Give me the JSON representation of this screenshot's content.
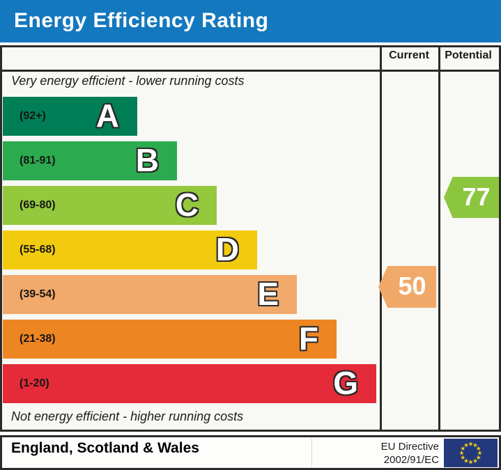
{
  "title": "Energy Efficiency Rating",
  "columns": {
    "current": "Current",
    "potential": "Potential"
  },
  "top_note": "Very energy efficient - lower running costs",
  "bottom_note": "Not energy efficient - higher running costs",
  "bands": [
    {
      "letter": "A",
      "range": "(92+)",
      "color": "#007e55"
    },
    {
      "letter": "B",
      "range": "(81-91)",
      "color": "#2caa4f"
    },
    {
      "letter": "C",
      "range": "(69-80)",
      "color": "#94c83d"
    },
    {
      "letter": "D",
      "range": "(55-68)",
      "color": "#f2cb0e"
    },
    {
      "letter": "E",
      "range": "(39-54)",
      "color": "#f2a96c"
    },
    {
      "letter": "F",
      "range": "(21-38)",
      "color": "#ee8523"
    },
    {
      "letter": "G",
      "range": "(1-20)",
      "color": "#e52a39"
    }
  ],
  "ratings": {
    "current": {
      "value": "50",
      "band": "E",
      "color": "#f1a969"
    },
    "potential": {
      "value": "77",
      "band": "C",
      "color": "#8cc63f"
    }
  },
  "footer": {
    "region": "England, Scotland & Wales",
    "directive_line1": "EU Directive",
    "directive_line2": "2002/91/EC"
  },
  "colors": {
    "title_bar": "#1478be",
    "border": "#2a2a2a",
    "flag_navy": "#24397b",
    "flag_star": "#fcd116"
  },
  "chart_data": {
    "type": "bar",
    "title": "Energy Efficiency Rating",
    "categories": [
      "A",
      "B",
      "C",
      "D",
      "E",
      "F",
      "G"
    ],
    "band_ranges": [
      "92+",
      "81-91",
      "69-80",
      "55-68",
      "39-54",
      "21-38",
      "1-20"
    ],
    "band_colors": [
      "#007e55",
      "#2caa4f",
      "#94c83d",
      "#f2cb0e",
      "#f2a96c",
      "#ee8523",
      "#e52a39"
    ],
    "values": {
      "current": 50,
      "potential": 77
    },
    "current_band": "E",
    "potential_band": "C",
    "xlabel": "",
    "ylabel": "",
    "annotations": [
      "Very energy efficient - lower running costs",
      "Not energy efficient - higher running costs",
      "England, Scotland & Wales",
      "EU Directive 2002/91/EC"
    ],
    "legend_position": "none",
    "grid": false
  }
}
